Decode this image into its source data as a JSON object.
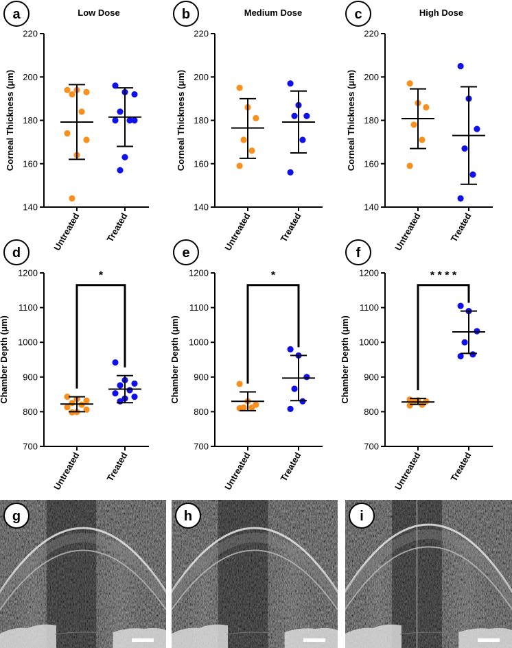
{
  "colors": {
    "untreated": "#f7901e",
    "treated": "#1010e8",
    "axis": "#000000"
  },
  "chart_data": [
    {
      "id": "a",
      "type": "scatter",
      "title": "Low Dose",
      "ylabel": "Corneal Thickness (μm)",
      "ylim": [
        140,
        220
      ],
      "yticks": [
        140,
        160,
        180,
        200,
        220
      ],
      "categories": [
        "Untreated",
        "Treated"
      ],
      "series": [
        {
          "name": "Untreated",
          "values": [
            194,
            194,
            193,
            192,
            184,
            174,
            171,
            164,
            144
          ],
          "mean": 179.2,
          "sd_upper": 196.5,
          "sd_lower": 162
        },
        {
          "name": "Treated",
          "values": [
            196,
            193,
            192,
            184,
            180,
            180,
            180,
            163,
            157
          ],
          "mean": 181.5,
          "sd_upper": 195,
          "sd_lower": 168
        }
      ]
    },
    {
      "id": "b",
      "type": "scatter",
      "title": "Medium Dose",
      "ylabel": "Corneal Thickness (μm)",
      "ylim": [
        140,
        220
      ],
      "yticks": [
        140,
        160,
        180,
        200,
        220
      ],
      "categories": [
        "Untreated",
        "Treated"
      ],
      "series": [
        {
          "name": "Untreated",
          "values": [
            195,
            186,
            181,
            171,
            166,
            159
          ],
          "mean": 176.5,
          "sd_upper": 190,
          "sd_lower": 162.5
        },
        {
          "name": "Treated",
          "values": [
            197,
            187,
            182,
            182,
            171,
            156
          ],
          "mean": 179.2,
          "sd_upper": 193.5,
          "sd_lower": 165
        }
      ]
    },
    {
      "id": "c",
      "type": "scatter",
      "title": "High Dose",
      "ylabel": "Corneal Thickness (μm)",
      "ylim": [
        140,
        220
      ],
      "yticks": [
        140,
        160,
        180,
        200,
        220
      ],
      "categories": [
        "Untreated",
        "Treated"
      ],
      "series": [
        {
          "name": "Untreated",
          "values": [
            197,
            188,
            186,
            178,
            171,
            159
          ],
          "mean": 180.8,
          "sd_upper": 194.5,
          "sd_lower": 167
        },
        {
          "name": "Treated",
          "values": [
            205,
            190,
            176,
            167,
            155,
            144
          ],
          "mean": 173,
          "sd_upper": 195.5,
          "sd_lower": 150.5
        }
      ]
    },
    {
      "id": "d",
      "type": "scatter",
      "title": "",
      "ylabel": "Chamber Depth (μm)",
      "ylim": [
        700,
        1200
      ],
      "yticks": [
        700,
        800,
        900,
        1000,
        1100,
        1200
      ],
      "categories": [
        "Untreated",
        "Treated"
      ],
      "significance": "*",
      "sig_y": 1165,
      "series": [
        {
          "name": "Untreated",
          "values": [
            843,
            836,
            832,
            825,
            820,
            813,
            806,
            799,
            798
          ],
          "mean": 822,
          "sd_upper": 843,
          "sd_lower": 800
        },
        {
          "name": "Treated",
          "values": [
            942,
            891,
            881,
            876,
            862,
            853,
            843,
            838,
            830
          ],
          "mean": 865,
          "sd_upper": 904,
          "sd_lower": 826
        }
      ]
    },
    {
      "id": "e",
      "type": "scatter",
      "title": "",
      "ylabel": "Chamber Depth (μm)",
      "ylim": [
        700,
        1200
      ],
      "yticks": [
        700,
        800,
        900,
        1000,
        1100,
        1200
      ],
      "categories": [
        "Untreated",
        "Treated"
      ],
      "significance": "*",
      "sig_y": 1165,
      "series": [
        {
          "name": "Untreated",
          "values": [
            880,
            830,
            820,
            812,
            812,
            810
          ],
          "mean": 830,
          "sd_upper": 857,
          "sd_lower": 803
        },
        {
          "name": "Treated",
          "values": [
            980,
            962,
            900,
            866,
            830,
            808
          ],
          "mean": 897,
          "sd_upper": 962,
          "sd_lower": 832
        }
      ]
    },
    {
      "id": "f",
      "type": "scatter",
      "title": "",
      "ylabel": "Chamber Depth (μm)",
      "ylim": [
        700,
        1200
      ],
      "yticks": [
        700,
        800,
        900,
        1000,
        1100,
        1200
      ],
      "categories": [
        "Untreated",
        "Treated"
      ],
      "significance": "* * * *",
      "sig_y": 1165,
      "series": [
        {
          "name": "Untreated",
          "values": [
            835,
            833,
            830,
            828,
            820,
            818
          ],
          "mean": 828,
          "sd_upper": 838,
          "sd_lower": 821
        },
        {
          "name": "Treated",
          "values": [
            1105,
            1090,
            1032,
            1000,
            965,
            960
          ],
          "mean": 1030,
          "sd_upper": 1090,
          "sd_lower": 968
        }
      ]
    }
  ],
  "images": [
    {
      "id": "g",
      "description": "anterior-segment OCT image"
    },
    {
      "id": "h",
      "description": "anterior-segment OCT image"
    },
    {
      "id": "i",
      "description": "anterior-segment OCT image"
    }
  ]
}
